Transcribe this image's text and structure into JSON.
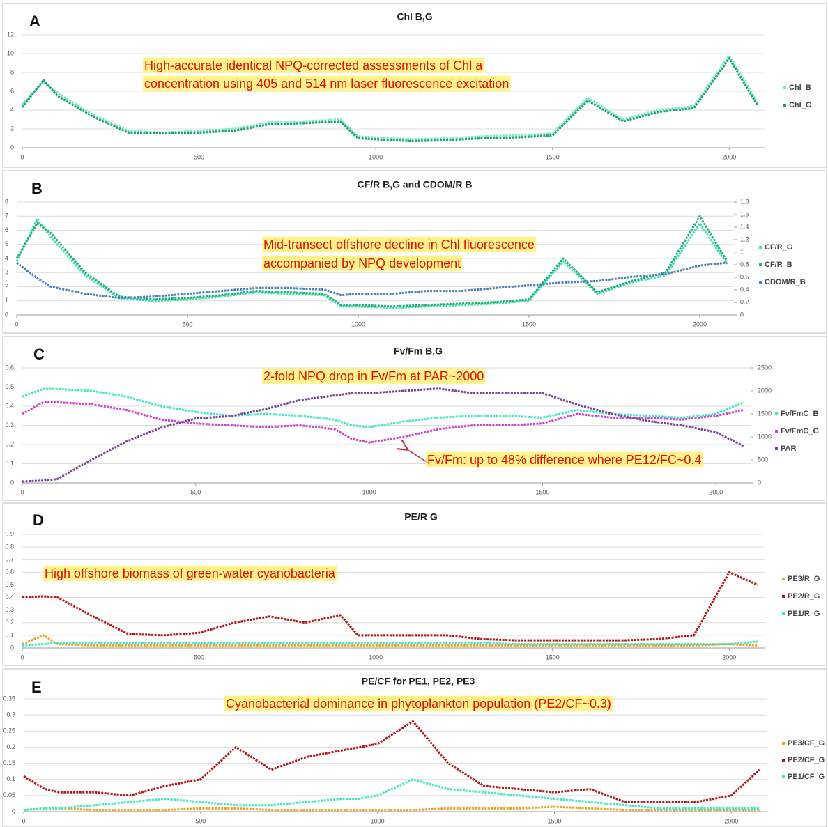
{
  "chart_data": [
    {
      "type": "line",
      "panel_label": "A",
      "title": "Chl B,G",
      "annotations": [
        "High-accurate identical NPQ-corrected assessments of Chl a",
        "concentration using 405 and 514 nm laser fluorescence excitation"
      ],
      "x": [
        0,
        60,
        100,
        200,
        300,
        400,
        500,
        600,
        700,
        800,
        900,
        950,
        1000,
        1100,
        1200,
        1300,
        1400,
        1500,
        1600,
        1700,
        1800,
        1900,
        2000,
        2080
      ],
      "xlim": [
        0,
        2100
      ],
      "xticks": [
        0,
        500,
        1000,
        1500,
        2000
      ],
      "ylim": [
        0,
        12
      ],
      "yticks": [
        0,
        2,
        4,
        6,
        8,
        10,
        12
      ],
      "series": [
        {
          "name": "Chl_B",
          "color": "#6fe8c8",
          "values": [
            4.6,
            7.0,
            5.8,
            3.5,
            1.8,
            1.6,
            1.8,
            2.0,
            2.7,
            2.8,
            3.0,
            1.2,
            1.1,
            0.9,
            1.0,
            1.2,
            1.3,
            1.5,
            5.3,
            3.0,
            4.0,
            4.4,
            9.8,
            4.8
          ]
        },
        {
          "name": "Chl_G",
          "color": "#1aa36a",
          "values": [
            4.3,
            7.2,
            5.5,
            3.3,
            1.6,
            1.5,
            1.6,
            1.8,
            2.5,
            2.6,
            2.8,
            1.0,
            0.9,
            0.7,
            0.8,
            1.0,
            1.1,
            1.3,
            5.0,
            2.8,
            3.8,
            4.2,
            9.5,
            4.5
          ]
        }
      ]
    },
    {
      "type": "line",
      "panel_label": "B",
      "title": "CF/R B,G and CDOM/R B",
      "annotations": [
        "Mid-transect offshore decline in Chl fluorescence",
        "accompanied by  NPQ development"
      ],
      "x": [
        0,
        60,
        100,
        200,
        300,
        400,
        500,
        600,
        700,
        800,
        900,
        950,
        1000,
        1100,
        1200,
        1300,
        1400,
        1500,
        1600,
        1700,
        1800,
        1900,
        2000,
        2080
      ],
      "xlim": [
        0,
        2100
      ],
      "xticks": [
        0,
        500,
        1000,
        1500,
        2000
      ],
      "ylim": [
        0,
        8
      ],
      "yticks": [
        0,
        1,
        2,
        3,
        4,
        5,
        6,
        7,
        8
      ],
      "y2lim": [
        0,
        1.8
      ],
      "y2ticks": [
        0,
        0.2,
        0.4,
        0.6,
        0.8,
        1,
        1.2,
        1.4,
        1.6,
        1.8
      ],
      "series": [
        {
          "name": "CF/R_G",
          "color": "#3ee0b0",
          "values": [
            3.8,
            6.8,
            5.5,
            2.8,
            1.2,
            1.0,
            1.1,
            1.3,
            1.6,
            1.5,
            1.4,
            0.6,
            0.6,
            0.5,
            0.6,
            0.7,
            0.8,
            1.0,
            3.8,
            1.5,
            2.3,
            2.8,
            6.5,
            3.6
          ]
        },
        {
          "name": "CF/R_B",
          "color": "#20b070",
          "values": [
            4.0,
            6.5,
            5.8,
            3.0,
            1.3,
            1.1,
            1.2,
            1.4,
            1.7,
            1.6,
            1.5,
            0.7,
            0.7,
            0.6,
            0.7,
            0.8,
            0.9,
            1.1,
            4.0,
            1.6,
            2.4,
            3.0,
            7.0,
            3.8
          ]
        },
        {
          "name": "CDOM/R_B",
          "color": "#4a7cc0",
          "values": [
            3.7,
            2.6,
            2.0,
            1.5,
            1.2,
            1.3,
            1.5,
            1.7,
            1.9,
            1.9,
            1.8,
            1.4,
            1.5,
            1.5,
            1.7,
            1.7,
            1.9,
            2.1,
            2.3,
            2.4,
            2.7,
            2.9,
            3.5,
            3.7
          ]
        }
      ]
    },
    {
      "type": "line",
      "panel_label": "C",
      "title": "Fv/Fm B,G",
      "annotations": [
        "2-fold NPQ drop in Fv/Fm at PAR~2000",
        "Fv/Fm: up to 48% difference where PE12/FC~0.4"
      ],
      "x": [
        0,
        60,
        100,
        200,
        300,
        400,
        500,
        600,
        700,
        800,
        900,
        950,
        1000,
        1100,
        1200,
        1300,
        1400,
        1500,
        1600,
        1700,
        1800,
        1900,
        2000,
        2080
      ],
      "xlim": [
        0,
        2100
      ],
      "xticks": [
        0,
        500,
        1000,
        1500,
        2000
      ],
      "ylim": [
        0,
        0.6
      ],
      "yticks": [
        0,
        0.1,
        0.2,
        0.3,
        0.4,
        0.5,
        0.6
      ],
      "y2lim": [
        0,
        2500
      ],
      "y2ticks": [
        0,
        500,
        1000,
        1500,
        2000,
        2500
      ],
      "series": [
        {
          "name": "Fv/FmC_B",
          "color": "#3ee8c0",
          "values": [
            0.45,
            0.49,
            0.49,
            0.48,
            0.45,
            0.4,
            0.37,
            0.35,
            0.36,
            0.35,
            0.33,
            0.3,
            0.29,
            0.32,
            0.34,
            0.35,
            0.35,
            0.34,
            0.38,
            0.36,
            0.35,
            0.34,
            0.36,
            0.42
          ]
        },
        {
          "name": "Fv/FmC_G",
          "color": "#d040d0",
          "values": [
            0.36,
            0.42,
            0.42,
            0.41,
            0.38,
            0.33,
            0.31,
            0.3,
            0.29,
            0.3,
            0.28,
            0.23,
            0.21,
            0.24,
            0.28,
            0.3,
            0.3,
            0.31,
            0.36,
            0.34,
            0.34,
            0.33,
            0.35,
            0.38
          ]
        },
        {
          "name": "PAR",
          "color": "#7a3fa0",
          "axis": "y2",
          "values": [
            30,
            50,
            80,
            500,
            900,
            1200,
            1400,
            1450,
            1600,
            1800,
            1900,
            1950,
            1950,
            2000,
            2050,
            1950,
            1950,
            1950,
            1700,
            1500,
            1350,
            1250,
            1100,
            800
          ]
        }
      ]
    },
    {
      "type": "line",
      "panel_label": "D",
      "title": "PE/R G",
      "annotations": [
        "High offshore biomass of green-water cyanobacteria"
      ],
      "x": [
        0,
        60,
        100,
        200,
        300,
        400,
        500,
        600,
        700,
        800,
        900,
        950,
        1000,
        1100,
        1200,
        1300,
        1400,
        1500,
        1600,
        1700,
        1800,
        1900,
        2000,
        2080
      ],
      "xlim": [
        0,
        2100
      ],
      "xticks": [
        0,
        500,
        1000,
        1500,
        2000
      ],
      "ylim": [
        0,
        0.9
      ],
      "yticks": [
        0,
        0.1,
        0.2,
        0.3,
        0.4,
        0.5,
        0.6,
        0.7,
        0.8,
        0.9
      ],
      "series": [
        {
          "name": "PE3/R_G",
          "color": "#f0a020",
          "values": [
            0.03,
            0.1,
            0.03,
            0.02,
            0.02,
            0.02,
            0.02,
            0.02,
            0.02,
            0.02,
            0.02,
            0.02,
            0.02,
            0.02,
            0.02,
            0.02,
            0.02,
            0.02,
            0.02,
            0.02,
            0.02,
            0.02,
            0.03,
            0.02
          ]
        },
        {
          "name": "PE2/R_G",
          "color": "#b01818",
          "values": [
            0.4,
            0.41,
            0.4,
            0.25,
            0.11,
            0.1,
            0.12,
            0.2,
            0.25,
            0.2,
            0.26,
            0.1,
            0.1,
            0.1,
            0.1,
            0.07,
            0.06,
            0.06,
            0.06,
            0.06,
            0.07,
            0.1,
            0.6,
            0.5
          ]
        },
        {
          "name": "PE1/R_G",
          "color": "#3ee8c0",
          "values": [
            0.02,
            0.03,
            0.04,
            0.04,
            0.04,
            0.04,
            0.04,
            0.04,
            0.04,
            0.04,
            0.04,
            0.04,
            0.04,
            0.04,
            0.04,
            0.04,
            0.03,
            0.03,
            0.03,
            0.03,
            0.03,
            0.03,
            0.03,
            0.05
          ]
        }
      ]
    },
    {
      "type": "line",
      "panel_label": "E",
      "title": "PE/CF for PE1, PE2, PE3",
      "annotations": [
        "Cyanobacterial dominance in phytoplankton  population (PE2/CF~0.3)"
      ],
      "x": [
        0,
        60,
        100,
        200,
        300,
        400,
        500,
        600,
        700,
        800,
        900,
        950,
        1000,
        1100,
        1200,
        1300,
        1400,
        1500,
        1600,
        1700,
        1800,
        1900,
        2000,
        2080
      ],
      "xlim": [
        0,
        2100
      ],
      "xticks": [
        0,
        500,
        1000,
        1500,
        2000
      ],
      "ylim": [
        0,
        0.35
      ],
      "yticks": [
        0,
        0.05,
        0.1,
        0.15,
        0.2,
        0.25,
        0.3,
        0.35
      ],
      "series": [
        {
          "name": "PE3/CF_G",
          "color": "#f0a020",
          "values": [
            0.005,
            0.01,
            0.01,
            0.005,
            0.005,
            0.005,
            0.01,
            0.01,
            0.005,
            0.005,
            0.005,
            0.005,
            0.005,
            0.005,
            0.01,
            0.01,
            0.01,
            0.015,
            0.01,
            0.005,
            0.005,
            0.005,
            0.005,
            0.005
          ]
        },
        {
          "name": "PE2/CF_G",
          "color": "#b01818",
          "values": [
            0.11,
            0.07,
            0.06,
            0.06,
            0.05,
            0.08,
            0.1,
            0.2,
            0.13,
            0.17,
            0.19,
            0.2,
            0.21,
            0.28,
            0.15,
            0.08,
            0.07,
            0.06,
            0.07,
            0.03,
            0.03,
            0.03,
            0.05,
            0.13
          ]
        },
        {
          "name": "PE1/CF_G",
          "color": "#3ee8c0",
          "values": [
            0.005,
            0.01,
            0.01,
            0.02,
            0.03,
            0.04,
            0.03,
            0.02,
            0.02,
            0.03,
            0.04,
            0.04,
            0.05,
            0.1,
            0.07,
            0.06,
            0.05,
            0.04,
            0.03,
            0.02,
            0.01,
            0.01,
            0.01,
            0.01
          ]
        }
      ]
    }
  ]
}
